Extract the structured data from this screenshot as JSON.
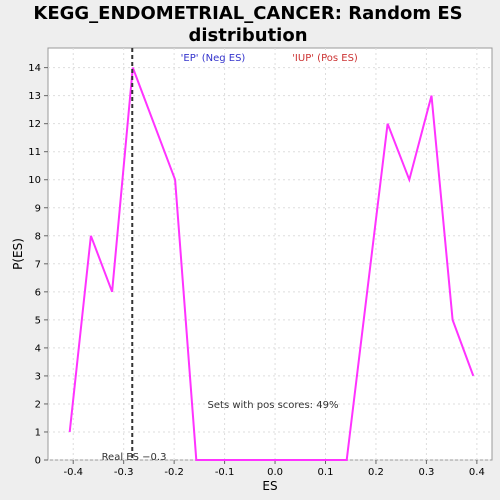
{
  "chart_data": {
    "type": "line",
    "title_line1": "KEGG_ENDOMETRIAL_CANCER: Random ES",
    "title_line2": "distribution",
    "xlabel": "ES",
    "ylabel": "P(ES)",
    "xlim": [
      -0.45,
      0.43
    ],
    "ylim": [
      0,
      14.7
    ],
    "x_ticks": [
      -0.4,
      -0.3,
      -0.2,
      -0.1,
      0.0,
      0.1,
      0.2,
      0.3,
      0.4
    ],
    "x_tick_labels": [
      "-0.4",
      "-0.3",
      "-0.2",
      "-0.1",
      "0.0",
      "0.1",
      "0.2",
      "0.3",
      "0.4"
    ],
    "y_ticks": [
      0,
      1,
      2,
      3,
      4,
      5,
      6,
      7,
      8,
      9,
      10,
      11,
      12,
      13,
      14
    ],
    "y_tick_labels": [
      "0",
      "1",
      "2",
      "3",
      "4",
      "5",
      "6",
      "7",
      "8",
      "9",
      "10",
      "11",
      "12",
      "13",
      "14"
    ],
    "grid": true,
    "series": [
      {
        "color": "#ff33ff",
        "x": [
          -0.407,
          -0.365,
          -0.323,
          -0.282,
          -0.198,
          -0.156,
          0.142,
          0.223,
          0.266,
          0.31,
          0.352,
          0.393
        ],
        "y": [
          1,
          8,
          6,
          14,
          10,
          0,
          0,
          12,
          10,
          13,
          5,
          3
        ]
      }
    ],
    "real_es": -0.283,
    "real_es_label": "Real ES −0.3",
    "annotations": {
      "neg_label": "'EP' (Neg ES)",
      "pos_label": "'IUP' (Pos ES)",
      "pos_scores": "Sets with pos scores: 49%"
    },
    "colors": {
      "neg": "#3333cc",
      "pos": "#cc3333",
      "line": "#ff33ff",
      "grid": "#dddddd",
      "plot_bg": "#ffffff",
      "page_bg": "#eeeeee"
    }
  }
}
